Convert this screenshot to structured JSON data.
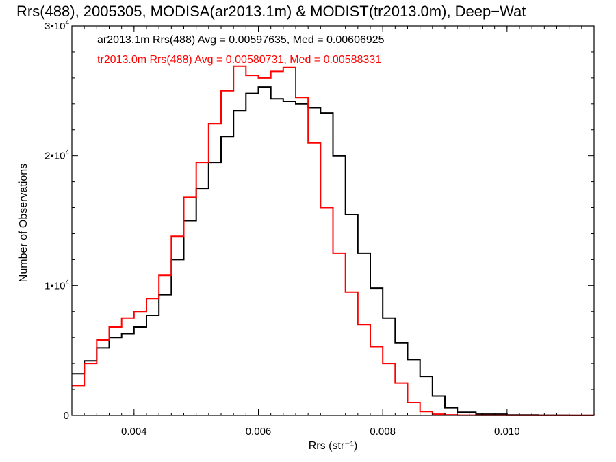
{
  "chart_data": {
    "type": "line",
    "title": "Rrs(488), 2005305, MODISA(ar2013.1m) & MODIST(tr2013.0m), Deep−Wat",
    "xlabel": "Rrs (str⁻¹)",
    "ylabel": "Number of Observations",
    "xlim": [
      0.003,
      0.0114
    ],
    "ylim": [
      0,
      30000
    ],
    "xticks": [
      0.004,
      0.006,
      0.008,
      0.01
    ],
    "xtick_labels": [
      "0.004",
      "0.006",
      "0.008",
      "0.010"
    ],
    "yticks": [
      0,
      10000,
      20000,
      30000
    ],
    "ytick_labels": [
      {
        "main": "0",
        "exp": ""
      },
      {
        "main": "1•10",
        "exp": "4"
      },
      {
        "main": "2•10",
        "exp": "4"
      },
      {
        "main": "3•10",
        "exp": "4"
      }
    ],
    "grid": false,
    "legend_position": "top-left",
    "series": [
      {
        "name": "ar2013.1m Rrs(488) Avg = 0.00597635, Med = 0.00606925",
        "color": "#000000",
        "x": [
          0.003,
          0.0032,
          0.0034,
          0.0036,
          0.0038,
          0.004,
          0.0042,
          0.0044,
          0.0046,
          0.0048,
          0.005,
          0.0052,
          0.0054,
          0.0056,
          0.0058,
          0.006,
          0.0062,
          0.0064,
          0.0066,
          0.0068,
          0.007,
          0.0072,
          0.0074,
          0.0076,
          0.0078,
          0.008,
          0.0082,
          0.0084,
          0.0086,
          0.0088,
          0.009,
          0.0092,
          0.0095,
          0.01,
          0.0105,
          0.011,
          0.0114
        ],
        "y": [
          3200,
          4200,
          5200,
          6000,
          6300,
          6800,
          7700,
          9300,
          12000,
          15000,
          17500,
          19500,
          21500,
          23500,
          24800,
          25300,
          24400,
          24200,
          24000,
          23700,
          23300,
          20000,
          15500,
          12500,
          9800,
          7500,
          5600,
          4300,
          3000,
          1500,
          600,
          250,
          100,
          40,
          20,
          10,
          5
        ]
      },
      {
        "name": "tr2013.0m Rrs(488) Avg = 0.00580731, Med = 0.00588331",
        "color": "#ff0000",
        "x": [
          0.003,
          0.0032,
          0.0034,
          0.0036,
          0.0038,
          0.004,
          0.0042,
          0.0044,
          0.0046,
          0.0048,
          0.005,
          0.0052,
          0.0054,
          0.0056,
          0.0058,
          0.006,
          0.0062,
          0.0064,
          0.0066,
          0.0068,
          0.007,
          0.0072,
          0.0074,
          0.0076,
          0.0078,
          0.008,
          0.0082,
          0.0084,
          0.0086,
          0.0088,
          0.009,
          0.0092,
          0.0095,
          0.01,
          0.0105,
          0.011,
          0.0114
        ],
        "y": [
          2300,
          4000,
          5800,
          6800,
          7500,
          8000,
          9000,
          10800,
          13800,
          16800,
          19500,
          22500,
          25000,
          26900,
          26200,
          26000,
          26500,
          26800,
          24500,
          21000,
          16000,
          12500,
          9500,
          7000,
          5300,
          4000,
          2500,
          1000,
          300,
          100,
          50,
          20,
          10,
          5,
          5,
          5,
          5
        ]
      }
    ]
  }
}
